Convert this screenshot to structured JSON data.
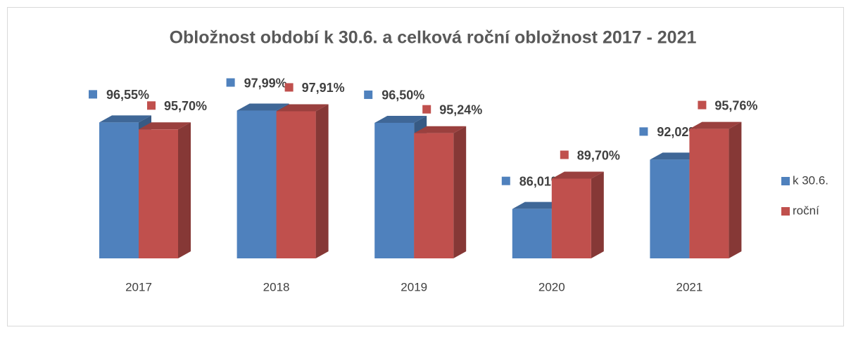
{
  "chart_data": {
    "type": "bar3d",
    "title": "Obložnost období k 30.6. a celková roční obložnost 2017 - 2021",
    "categories": [
      "2017",
      "2018",
      "2019",
      "2020",
      "2021"
    ],
    "series": [
      {
        "name": "k 30.6.",
        "color": "#4f81bd",
        "values": [
          96.55,
          97.99,
          96.5,
          86.01,
          92.02
        ],
        "value_labels": [
          "96,55%",
          "97,99%",
          "96,50%",
          "86,01%",
          "92,02%"
        ]
      },
      {
        "name": "roční",
        "color": "#c0504d",
        "values": [
          95.7,
          97.91,
          95.24,
          89.7,
          95.76
        ],
        "value_labels": [
          "95,70%",
          "97,91%",
          "95,24%",
          "89,70%",
          "95,76%"
        ]
      }
    ],
    "ylim": [
      80,
      100
    ],
    "legend": "right"
  }
}
